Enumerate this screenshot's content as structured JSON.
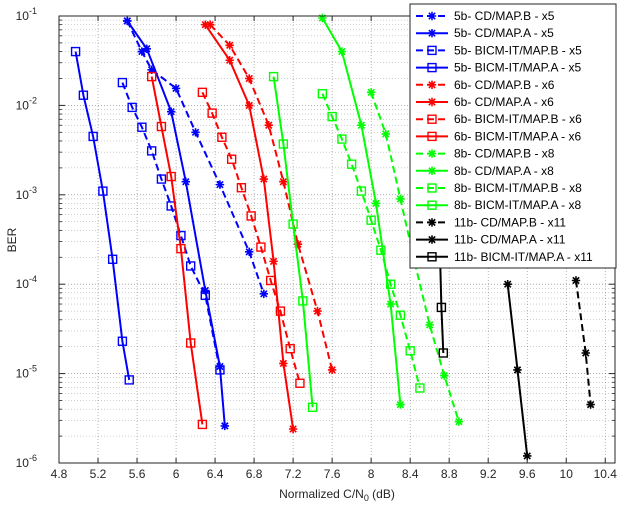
{
  "chart_data": {
    "type": "line",
    "title": "",
    "xlabel_prefix": "Normalized C/N",
    "xlabel_sub": "0",
    "xlabel_suffix": " (dB)",
    "ylabel": "BER",
    "xlim": [
      4.8,
      10.5
    ],
    "ylim": [
      1e-06,
      0.1
    ],
    "yscale": "log",
    "grid": true,
    "legend_position": "top-right",
    "x_ticks": [
      {
        "v": 4.8,
        "label": "4.8"
      },
      {
        "v": 5.2,
        "label": "5.2"
      },
      {
        "v": 5.6,
        "label": "5.6"
      },
      {
        "v": 6.0,
        "label": "6"
      },
      {
        "v": 6.4,
        "label": "6.4"
      },
      {
        "v": 6.8,
        "label": "6.8"
      },
      {
        "v": 7.2,
        "label": "7.2"
      },
      {
        "v": 7.6,
        "label": "7.6"
      },
      {
        "v": 8.0,
        "label": "8"
      },
      {
        "v": 8.4,
        "label": "8.4"
      },
      {
        "v": 8.8,
        "label": "8.8"
      },
      {
        "v": 9.2,
        "label": "9.2"
      },
      {
        "v": 9.6,
        "label": "9.6"
      },
      {
        "v": 10.0,
        "label": "10"
      },
      {
        "v": 10.4,
        "label": "10.4"
      }
    ],
    "y_ticks": [
      {
        "v": 0.1,
        "base": "10",
        "exp": "-1"
      },
      {
        "v": 0.01,
        "base": "10",
        "exp": "-2"
      },
      {
        "v": 0.001,
        "base": "10",
        "exp": "-3"
      },
      {
        "v": 0.0001,
        "base": "10",
        "exp": "-4"
      },
      {
        "v": 1e-05,
        "base": "10",
        "exp": "-5"
      },
      {
        "v": 1e-06,
        "base": "10",
        "exp": "-6"
      }
    ],
    "series": [
      {
        "name": "5b- CD/MAP.B - x5",
        "color": "#0000ff",
        "dash": true,
        "marker": "star",
        "x": [
          5.5,
          5.65,
          5.75,
          6.0,
          6.2,
          6.45,
          6.75,
          6.9
        ],
        "y": [
          0.088,
          0.04,
          0.025,
          0.0155,
          0.005,
          0.0013,
          0.00023,
          7.8e-05
        ]
      },
      {
        "name": "5b- CD/MAP.A - x5",
        "color": "#0000ff",
        "dash": false,
        "marker": "star",
        "x": [
          5.5,
          5.7,
          5.95,
          6.1,
          6.3,
          6.45,
          6.5
        ],
        "y": [
          0.088,
          0.043,
          0.0085,
          0.0014,
          8.5e-05,
          1.2e-05,
          2.6e-06
        ]
      },
      {
        "name": "5b- BICM-IT/MAP.B - x5",
        "color": "#0000ff",
        "dash": true,
        "marker": "square",
        "x": [
          5.45,
          5.55,
          5.65,
          5.75,
          5.85,
          5.95,
          6.05,
          6.15,
          6.3,
          6.45
        ],
        "y": [
          0.018,
          0.0095,
          0.0057,
          0.0031,
          0.0015,
          0.00075,
          0.00035,
          0.00016,
          7.5e-05,
          1.1e-05
        ]
      },
      {
        "name": "5b- BICM-IT/MAP.A - x5",
        "color": "#0000ff",
        "dash": false,
        "marker": "square",
        "x": [
          4.97,
          5.05,
          5.15,
          5.25,
          5.35,
          5.45,
          5.52
        ],
        "y": [
          0.04,
          0.013,
          0.0045,
          0.0011,
          0.00019,
          2.3e-05,
          8.5e-06
        ]
      },
      {
        "name": "6b- CD/MAP.B - x6",
        "color": "#ff0000",
        "dash": true,
        "marker": "star",
        "x": [
          6.35,
          6.55,
          6.75,
          6.95,
          7.1,
          7.25,
          7.45,
          7.6
        ],
        "y": [
          0.08,
          0.047,
          0.02,
          0.006,
          0.0014,
          0.00028,
          5e-05,
          1.1e-05
        ]
      },
      {
        "name": "6b- CD/MAP.A - x6",
        "color": "#ff0000",
        "dash": false,
        "marker": "star",
        "x": [
          6.3,
          6.55,
          6.75,
          6.9,
          7.0,
          7.1,
          7.2
        ],
        "y": [
          0.08,
          0.032,
          0.01,
          0.0015,
          0.00018,
          1.3e-05,
          2.4e-06
        ]
      },
      {
        "name": "6b- BICM-IT/MAP.B - x6",
        "color": "#ff0000",
        "dash": true,
        "marker": "square",
        "x": [
          6.27,
          6.37,
          6.47,
          6.57,
          6.67,
          6.77,
          6.87,
          6.97,
          7.07,
          7.17,
          7.27
        ],
        "y": [
          0.014,
          0.0082,
          0.0044,
          0.0025,
          0.0012,
          0.00058,
          0.00026,
          0.00011,
          5e-05,
          1.9e-05,
          7.8e-06
        ]
      },
      {
        "name": "6b- BICM-IT/MAP.A - x6",
        "color": "#ff0000",
        "dash": false,
        "marker": "square",
        "x": [
          5.75,
          5.85,
          5.95,
          6.05,
          6.15,
          6.27
        ],
        "y": [
          0.021,
          0.0058,
          0.0016,
          0.00025,
          2.2e-05,
          2.7e-06
        ]
      },
      {
        "name": "8b- CD/MAP.B - x8",
        "color": "#00ff00",
        "dash": true,
        "marker": "star",
        "x": [
          8.0,
          8.15,
          8.3,
          8.45,
          8.6,
          8.75,
          8.9
        ],
        "y": [
          0.014,
          0.0048,
          0.0009,
          0.00017,
          3.5e-05,
          9.5e-06,
          2.9e-06
        ]
      },
      {
        "name": "8b- CD/MAP.A - x8",
        "color": "#00ff00",
        "dash": false,
        "marker": "star",
        "x": [
          7.5,
          7.7,
          7.9,
          8.05,
          8.2,
          8.3
        ],
        "y": [
          0.095,
          0.04,
          0.006,
          0.0008,
          6e-05,
          4.5e-06
        ]
      },
      {
        "name": "8b- BICM-IT/MAP.B - x8",
        "color": "#00ff00",
        "dash": true,
        "marker": "square",
        "x": [
          7.5,
          7.6,
          7.7,
          7.8,
          7.9,
          8.0,
          8.1,
          8.2,
          8.3,
          8.4,
          8.5
        ],
        "y": [
          0.0135,
          0.0075,
          0.0042,
          0.0022,
          0.0011,
          0.00052,
          0.00024,
          0.0001,
          4.5e-05,
          1.8e-05,
          6.9e-06
        ]
      },
      {
        "name": "8b- BICM-IT/MAP.A - x8",
        "color": "#00ff00",
        "dash": false,
        "marker": "square",
        "x": [
          7.0,
          7.1,
          7.2,
          7.3,
          7.4
        ],
        "y": [
          0.021,
          0.0037,
          0.00047,
          6.5e-05,
          4.2e-06
        ]
      },
      {
        "name": "11b- CD/MAP.B - x11",
        "color": "#000000",
        "dash": true,
        "marker": "star",
        "x": [
          10.1,
          10.2,
          10.25
        ],
        "y": [
          0.00011,
          1.7e-05,
          4.5e-06
        ]
      },
      {
        "name": "11b- CD/MAP.A - x11",
        "color": "#000000",
        "dash": false,
        "marker": "star",
        "x": [
          9.4,
          9.5,
          9.6
        ],
        "y": [
          0.0001,
          1.1e-05,
          1.2e-06
        ]
      },
      {
        "name": "11b- BICM-IT/MAP.A - x11",
        "color": "#000000",
        "dash": false,
        "marker": "square",
        "x": [
          8.7,
          8.72,
          8.74
        ],
        "y": [
          0.0004,
          5.5e-05,
          1.7e-05
        ]
      }
    ]
  }
}
